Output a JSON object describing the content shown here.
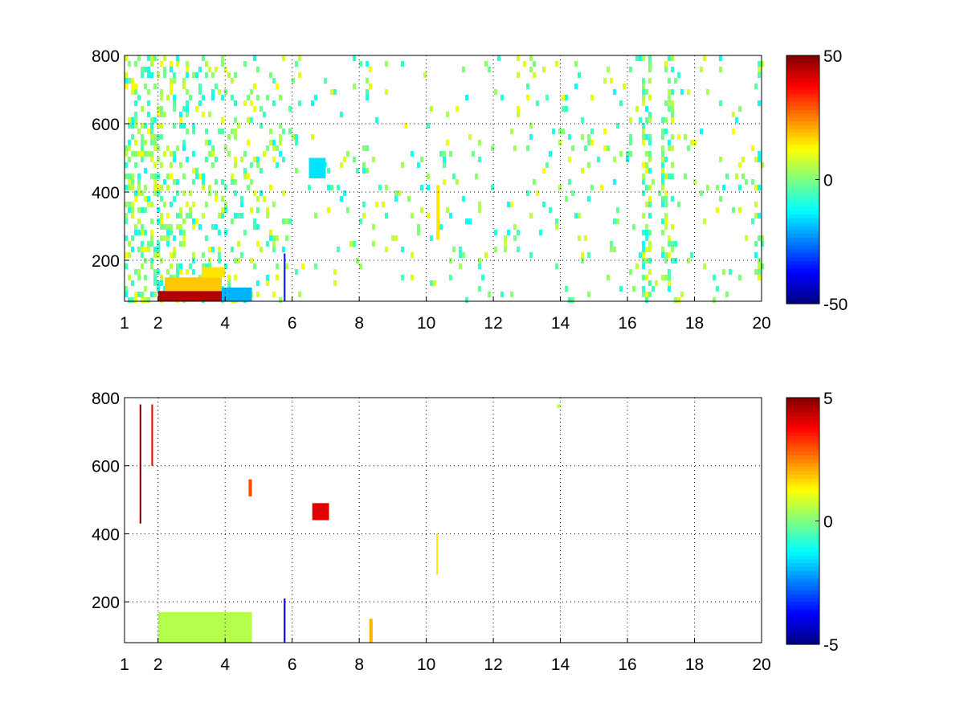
{
  "chart_data": [
    {
      "type": "heatmap",
      "title": "",
      "xlabel": "",
      "ylabel": "",
      "xlim": [
        1,
        20
      ],
      "ylim": [
        80,
        800
      ],
      "x_ticks": [
        "1",
        "2",
        "4",
        "6",
        "8",
        "10",
        "12",
        "14",
        "16",
        "18",
        "20"
      ],
      "y_ticks": [
        "200",
        "400",
        "600",
        "800"
      ],
      "grid": true,
      "colormap": "jet",
      "colorbar": {
        "range": [
          -50,
          50
        ],
        "ticks": [
          "50",
          "0",
          "-50"
        ]
      },
      "features": [
        {
          "x": [
            2.0,
            3.9
          ],
          "y": [
            80,
            110
          ],
          "value": 45
        },
        {
          "x": [
            2.2,
            3.9
          ],
          "y": [
            110,
            150
          ],
          "value": 18
        },
        {
          "x": [
            3.3,
            4.0
          ],
          "y": [
            150,
            180
          ],
          "value": 15
        },
        {
          "x": [
            3.9,
            4.8
          ],
          "y": [
            80,
            120
          ],
          "value": -20
        },
        {
          "x": [
            5.75,
            5.8
          ],
          "y": [
            80,
            220
          ],
          "value": -35
        },
        {
          "x": [
            6.5,
            7.0
          ],
          "y": [
            440,
            500
          ],
          "value": -15
        },
        {
          "x": [
            10.3,
            10.4
          ],
          "y": [
            260,
            420
          ],
          "value": 15
        }
      ],
      "noise_value_range": [
        -12,
        12
      ]
    },
    {
      "type": "heatmap",
      "title": "",
      "xlabel": "",
      "ylabel": "",
      "xlim": [
        1,
        20
      ],
      "ylim": [
        80,
        800
      ],
      "x_ticks": [
        "1",
        "2",
        "4",
        "6",
        "8",
        "10",
        "12",
        "14",
        "16",
        "18",
        "20"
      ],
      "y_ticks": [
        "200",
        "400",
        "600",
        "800"
      ],
      "grid": true,
      "colormap": "jet",
      "colorbar": {
        "range": [
          -5,
          5
        ],
        "ticks": [
          "5",
          "0",
          "-5"
        ]
      },
      "features": [
        {
          "x": [
            1.45,
            1.5
          ],
          "y": [
            430,
            780
          ],
          "value": 5
        },
        {
          "x": [
            1.8,
            1.85
          ],
          "y": [
            600,
            780
          ],
          "value": 4
        },
        {
          "x": [
            2.0,
            4.8
          ],
          "y": [
            80,
            170
          ],
          "value": 0.5
        },
        {
          "x": [
            4.7,
            4.8
          ],
          "y": [
            510,
            560
          ],
          "value": 3
        },
        {
          "x": [
            5.75,
            5.8
          ],
          "y": [
            80,
            210
          ],
          "value": -4
        },
        {
          "x": [
            6.6,
            7.1
          ],
          "y": [
            440,
            490
          ],
          "value": 4
        },
        {
          "x": [
            8.3,
            8.4
          ],
          "y": [
            80,
            150
          ],
          "value": 2
        },
        {
          "x": [
            10.3,
            10.35
          ],
          "y": [
            280,
            400
          ],
          "value": 1.5
        },
        {
          "x": [
            13.9,
            14.0
          ],
          "y": [
            770,
            780
          ],
          "value": 0.5
        }
      ]
    }
  ]
}
